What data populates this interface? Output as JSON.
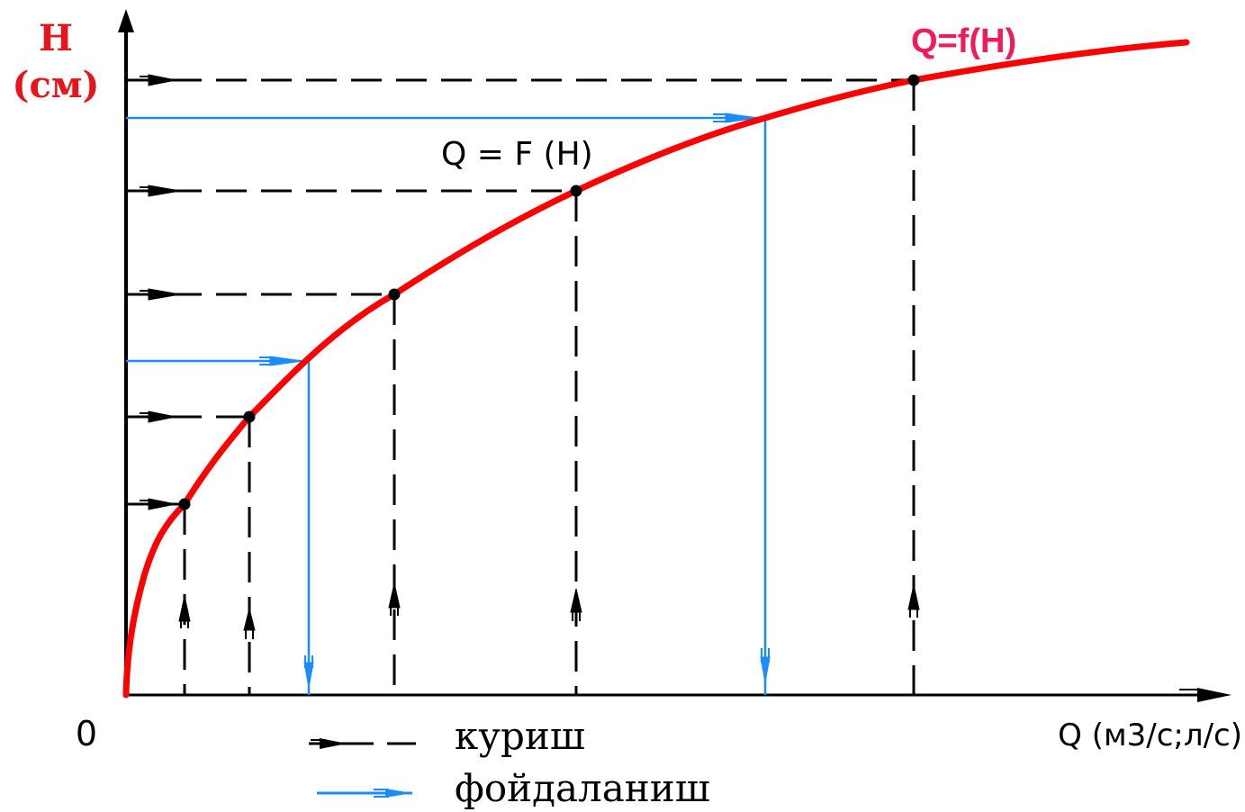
{
  "axis": {
    "y_label_line1": "H",
    "y_label_line2": "(см)",
    "origin": "0",
    "x_label": "Q (м3/с;л/с)"
  },
  "curve": {
    "label_top": "Q=f(H)",
    "label_mid": "Q = F (H)"
  },
  "legend": {
    "build": "куриш",
    "use": "фойдаланиш"
  },
  "colors": {
    "curve": "#ff0000",
    "curve_label": "#ee1c5a",
    "axis_label": "#e8141b",
    "build_line": "#000000",
    "use_line": "#1a8cff"
  }
}
